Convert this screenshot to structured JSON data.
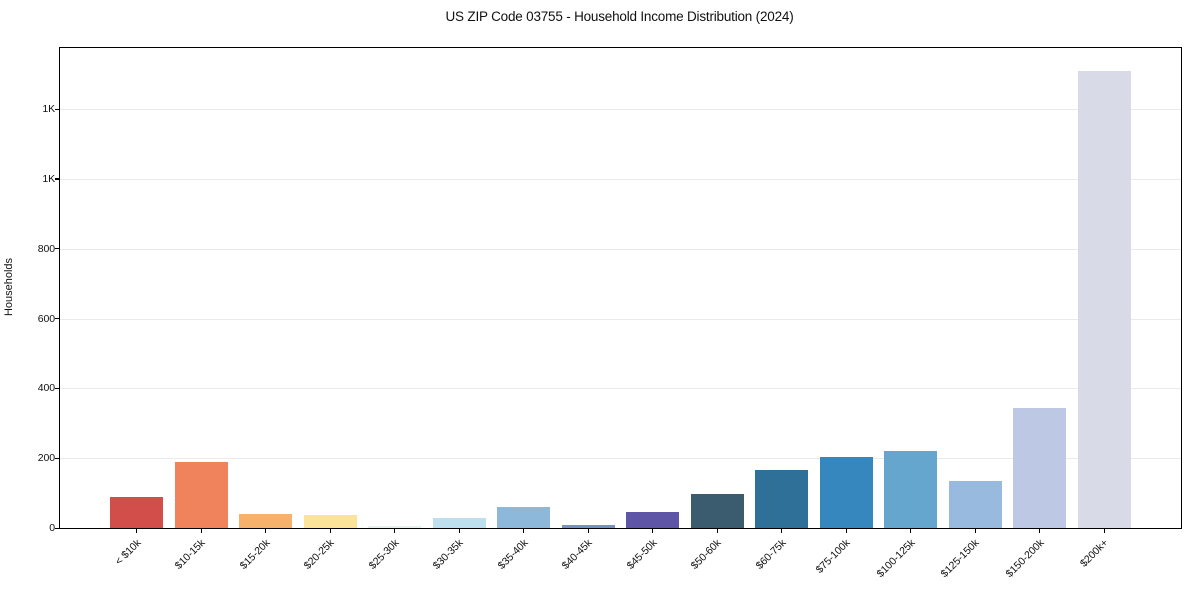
{
  "chart_data": {
    "type": "bar",
    "title": "US ZIP Code 03755 - Household Income Distribution (2024)",
    "xlabel": "",
    "ylabel": "Households",
    "ylim": [
      0,
      1375
    ],
    "grid": true,
    "legend": "none",
    "categories": [
      "< $10k",
      "$10-15k",
      "$15-20k",
      "$20-25k",
      "$25-30k",
      "$30-35k",
      "$35-40k",
      "$40-45k",
      "$45-50k",
      "$50-60k",
      "$60-75k",
      "$75-100k",
      "$100-125k",
      "$125-150k",
      "$150-200k",
      "$200k+"
    ],
    "values": [
      88,
      190,
      40,
      37,
      5,
      30,
      59,
      9,
      47,
      97,
      165,
      203,
      222,
      136,
      345,
      1310
    ],
    "bar_colors": [
      "#d14e4a",
      "#f0825c",
      "#f6b16c",
      "#fbe49a",
      "#e7f2ec",
      "#bedfee",
      "#8db8d9",
      "#7592c2",
      "#5e55a7",
      "#3b5c6e",
      "#2f7098",
      "#3687be",
      "#64a6ce",
      "#97bade",
      "#bdc9e4",
      "#d8dae8"
    ],
    "yticks": [
      {
        "value": 0,
        "label": "0"
      },
      {
        "value": 200,
        "label": "200"
      },
      {
        "value": 400,
        "label": "400"
      },
      {
        "value": 600,
        "label": "600"
      },
      {
        "value": 800,
        "label": "800"
      },
      {
        "value": 1000,
        "label": "1K"
      },
      {
        "value": 1200,
        "label": "1K"
      }
    ]
  },
  "colors": {
    "background": "#ffffff",
    "spine": "#000000",
    "gridline": "#eaeaea",
    "text": "#111111"
  }
}
